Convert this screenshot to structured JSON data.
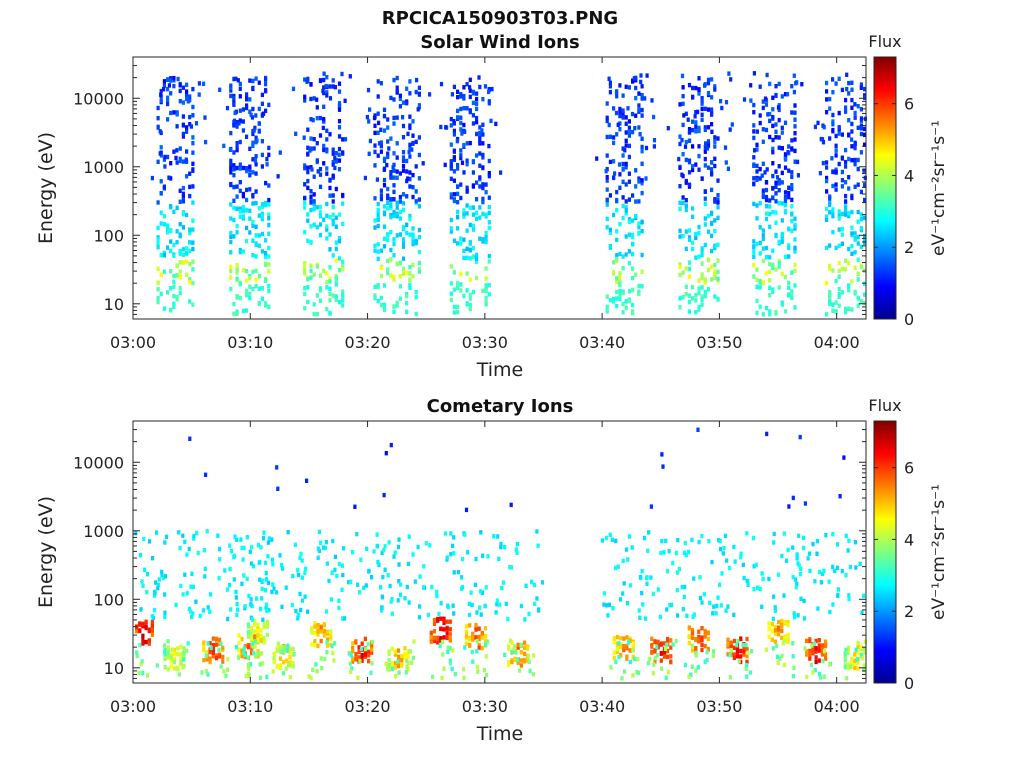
{
  "figure": {
    "title": "RPCICA150903T03.PNG"
  },
  "chart_data": [
    {
      "type": "heatmap",
      "title": "Solar Wind Ions",
      "xlabel": "Time",
      "ylabel": "Energy (eV)",
      "x_ticks": [
        "03:00",
        "03:10",
        "03:20",
        "03:30",
        "03:40",
        "03:50",
        "04:00"
      ],
      "y_ticks": [
        "10",
        "100",
        "1000",
        "10000"
      ],
      "xlim_minutes_after_0300": [
        0,
        62.5
      ],
      "ylim_eV": [
        6,
        40000
      ],
      "y_scale": "log",
      "colorbar": {
        "label": "Flux",
        "unit": "eV⁻¹cm⁻²sr⁻¹s⁻¹",
        "ticks": [
          "0",
          "2",
          "4",
          "6"
        ],
        "range": [
          0,
          7.3
        ],
        "colormap": "jet"
      },
      "sweeps_minutes_after_0300": [
        {
          "t0": 2.0,
          "t1": 5.2,
          "center": 3.8
        },
        {
          "t0": 8.2,
          "t1": 11.5,
          "center": 10.0
        },
        {
          "t0": 14.5,
          "t1": 17.8,
          "center": 16.2
        },
        {
          "t0": 20.5,
          "t1": 24.5,
          "center": 22.5
        },
        {
          "t0": 27.0,
          "t1": 30.5,
          "center": 29.0
        },
        {
          "t0": 40.3,
          "t1": 43.5,
          "center": 42.0
        },
        {
          "t0": 46.5,
          "t1": 50.0,
          "center": 48.5
        },
        {
          "t0": 52.8,
          "t1": 56.5,
          "center": 54.8
        },
        {
          "t0": 59.0,
          "t1": 62.3,
          "center": 60.8
        }
      ],
      "flux_level_by_energy": [
        {
          "energy_eV": 10,
          "flux": 3.0
        },
        {
          "energy_eV": 25,
          "flux": 3.5
        },
        {
          "energy_eV": 35,
          "flux": 4.3
        },
        {
          "energy_eV": 100,
          "flux": 2.5
        },
        {
          "energy_eV": 1000,
          "flux": 1.5
        },
        {
          "energy_eV": 10000,
          "flux": 1.0
        }
      ]
    },
    {
      "type": "heatmap",
      "title": "Cometary Ions",
      "xlabel": "Time",
      "ylabel": "Energy (eV)",
      "x_ticks": [
        "03:00",
        "03:10",
        "03:20",
        "03:30",
        "03:40",
        "03:50",
        "04:00"
      ],
      "y_ticks": [
        "10",
        "100",
        "1000",
        "10000"
      ],
      "xlim_minutes_after_0300": [
        0,
        62.5
      ],
      "ylim_eV": [
        6,
        40000
      ],
      "y_scale": "log",
      "colorbar": {
        "label": "Flux",
        "unit": "eV⁻¹cm⁻²sr⁻¹s⁻¹",
        "ticks": [
          "0",
          "2",
          "4",
          "6"
        ],
        "range": [
          0,
          7.3
        ],
        "colormap": "jet"
      },
      "hot_patches": [
        {
          "t": 0.8,
          "e": 33,
          "flux": 7.0
        },
        {
          "t": 3.5,
          "e": 14,
          "flux": 5.0
        },
        {
          "t": 6.8,
          "e": 18,
          "flux": 6.5
        },
        {
          "t": 9.8,
          "e": 20,
          "flux": 6.2
        },
        {
          "t": 10.6,
          "e": 33,
          "flux": 5.2
        },
        {
          "t": 12.8,
          "e": 14,
          "flux": 5.5
        },
        {
          "t": 16.0,
          "e": 30,
          "flux": 5.8
        },
        {
          "t": 19.5,
          "e": 18,
          "flux": 6.8
        },
        {
          "t": 22.6,
          "e": 14,
          "flux": 5.6
        },
        {
          "t": 26.2,
          "e": 35,
          "flux": 7.0
        },
        {
          "t": 29.2,
          "e": 28,
          "flux": 6.2
        },
        {
          "t": 32.8,
          "e": 16,
          "flux": 6.0
        },
        {
          "t": 41.8,
          "e": 20,
          "flux": 6.0
        },
        {
          "t": 45.0,
          "e": 18,
          "flux": 6.8
        },
        {
          "t": 48.2,
          "e": 26,
          "flux": 6.5
        },
        {
          "t": 51.5,
          "e": 18,
          "flux": 7.0
        },
        {
          "t": 55.0,
          "e": 33,
          "flux": 5.8
        },
        {
          "t": 58.2,
          "e": 18,
          "flux": 6.9
        },
        {
          "t": 61.5,
          "e": 14,
          "flux": 5.2
        }
      ],
      "sparse_high_energy_flux": 2.8
    }
  ],
  "colors": {
    "axis": "#262626",
    "background": "#ffffff"
  }
}
